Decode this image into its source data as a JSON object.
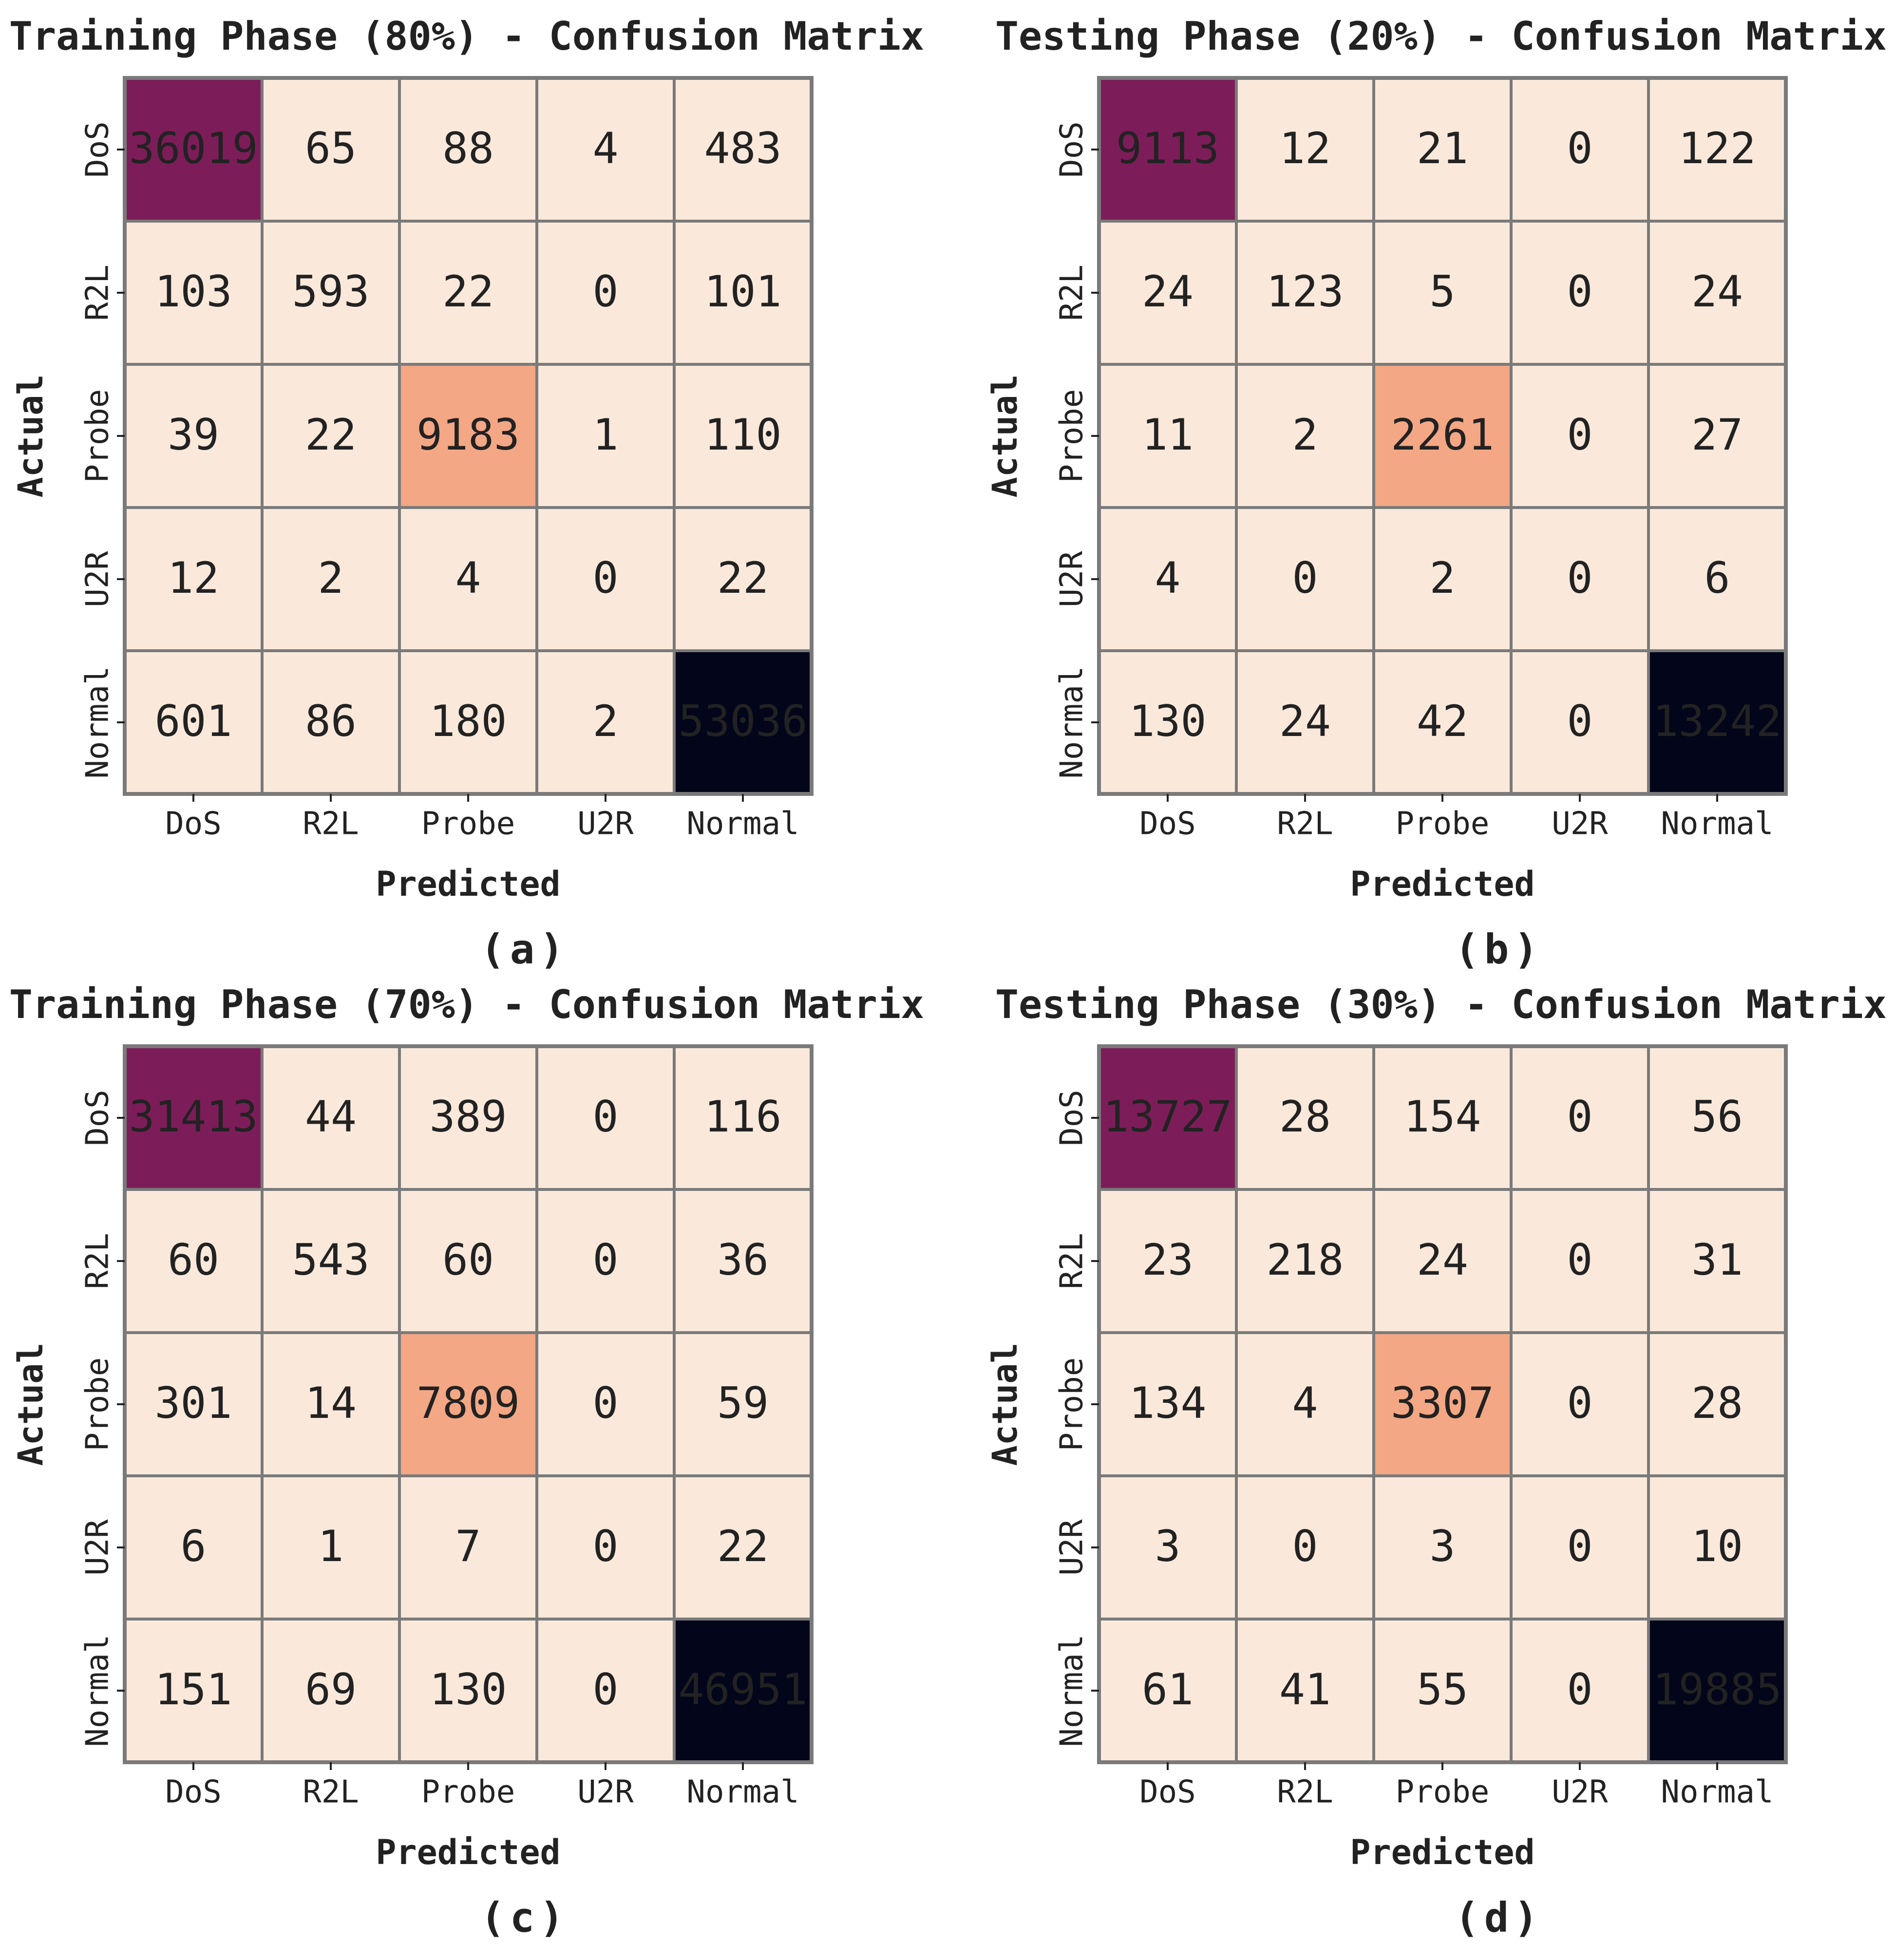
{
  "chart_data": [
    {
      "type": "heatmap",
      "title": "Training Phase (80%) - Confusion Matrix",
      "xlabel": "Predicted",
      "ylabel": "Actual",
      "caption": "(a)",
      "x_categories": [
        "DoS",
        "R2L",
        "Probe",
        "U2R",
        "Normal"
      ],
      "y_categories": [
        "DoS",
        "R2L",
        "Probe",
        "U2R",
        "Normal"
      ],
      "values": [
        [
          "36019",
          "65",
          "88",
          "4",
          "483"
        ],
        [
          "103",
          "593",
          "22",
          "0",
          "101"
        ],
        [
          "39",
          "22",
          "9183",
          "1",
          "110"
        ],
        [
          "12",
          "2",
          "4",
          "0",
          "22"
        ],
        [
          "601",
          "86",
          "180",
          "2",
          "53036"
        ]
      ]
    },
    {
      "type": "heatmap",
      "title": "Testing Phase (20%) - Confusion Matrix",
      "xlabel": "Predicted",
      "ylabel": "Actual",
      "caption": "(b)",
      "x_categories": [
        "DoS",
        "R2L",
        "Probe",
        "U2R",
        "Normal"
      ],
      "y_categories": [
        "DoS",
        "R2L",
        "Probe",
        "U2R",
        "Normal"
      ],
      "values": [
        [
          "9113",
          "12",
          "21",
          "0",
          "122"
        ],
        [
          "24",
          "123",
          "5",
          "0",
          "24"
        ],
        [
          "11",
          "2",
          "2261",
          "0",
          "27"
        ],
        [
          "4",
          "0",
          "2",
          "0",
          "6"
        ],
        [
          "130",
          "24",
          "42",
          "0",
          "13242"
        ]
      ]
    },
    {
      "type": "heatmap",
      "title": "Training Phase (70%) - Confusion Matrix",
      "xlabel": "Predicted",
      "ylabel": "Actual",
      "caption": "(c)",
      "x_categories": [
        "DoS",
        "R2L",
        "Probe",
        "U2R",
        "Normal"
      ],
      "y_categories": [
        "DoS",
        "R2L",
        "Probe",
        "U2R",
        "Normal"
      ],
      "values": [
        [
          "31413",
          "44",
          "389",
          "0",
          "116"
        ],
        [
          "60",
          "543",
          "60",
          "0",
          "36"
        ],
        [
          "301",
          "14",
          "7809",
          "0",
          "59"
        ],
        [
          "6",
          "1",
          "7",
          "0",
          "22"
        ],
        [
          "151",
          "69",
          "130",
          "0",
          "46951"
        ]
      ]
    },
    {
      "type": "heatmap",
      "title": "Testing Phase (30%) - Confusion Matrix",
      "xlabel": "Predicted",
      "ylabel": "Actual",
      "caption": "(d)",
      "x_categories": [
        "DoS",
        "R2L",
        "Probe",
        "U2R",
        "Normal"
      ],
      "y_categories": [
        "DoS",
        "R2L",
        "Probe",
        "U2R",
        "Normal"
      ],
      "values": [
        [
          "13727",
          "28",
          "154",
          "0",
          "56"
        ],
        [
          "23",
          "218",
          "24",
          "0",
          "31"
        ],
        [
          "134",
          "4",
          "3307",
          "0",
          "28"
        ],
        [
          "3",
          "0",
          "3",
          "0",
          "10"
        ],
        [
          "61",
          "41",
          "55",
          "0",
          "19885"
        ]
      ]
    }
  ],
  "colors": {
    "background": "#ffffff",
    "cell_low": "#fae9db",
    "cell_probe": "#f3a784",
    "cell_dos": "#7c1d59",
    "cell_normal": "#03051a",
    "grid_line": "#7a7a7a",
    "text_dark": "#222222",
    "text_light": "#ffffff"
  }
}
